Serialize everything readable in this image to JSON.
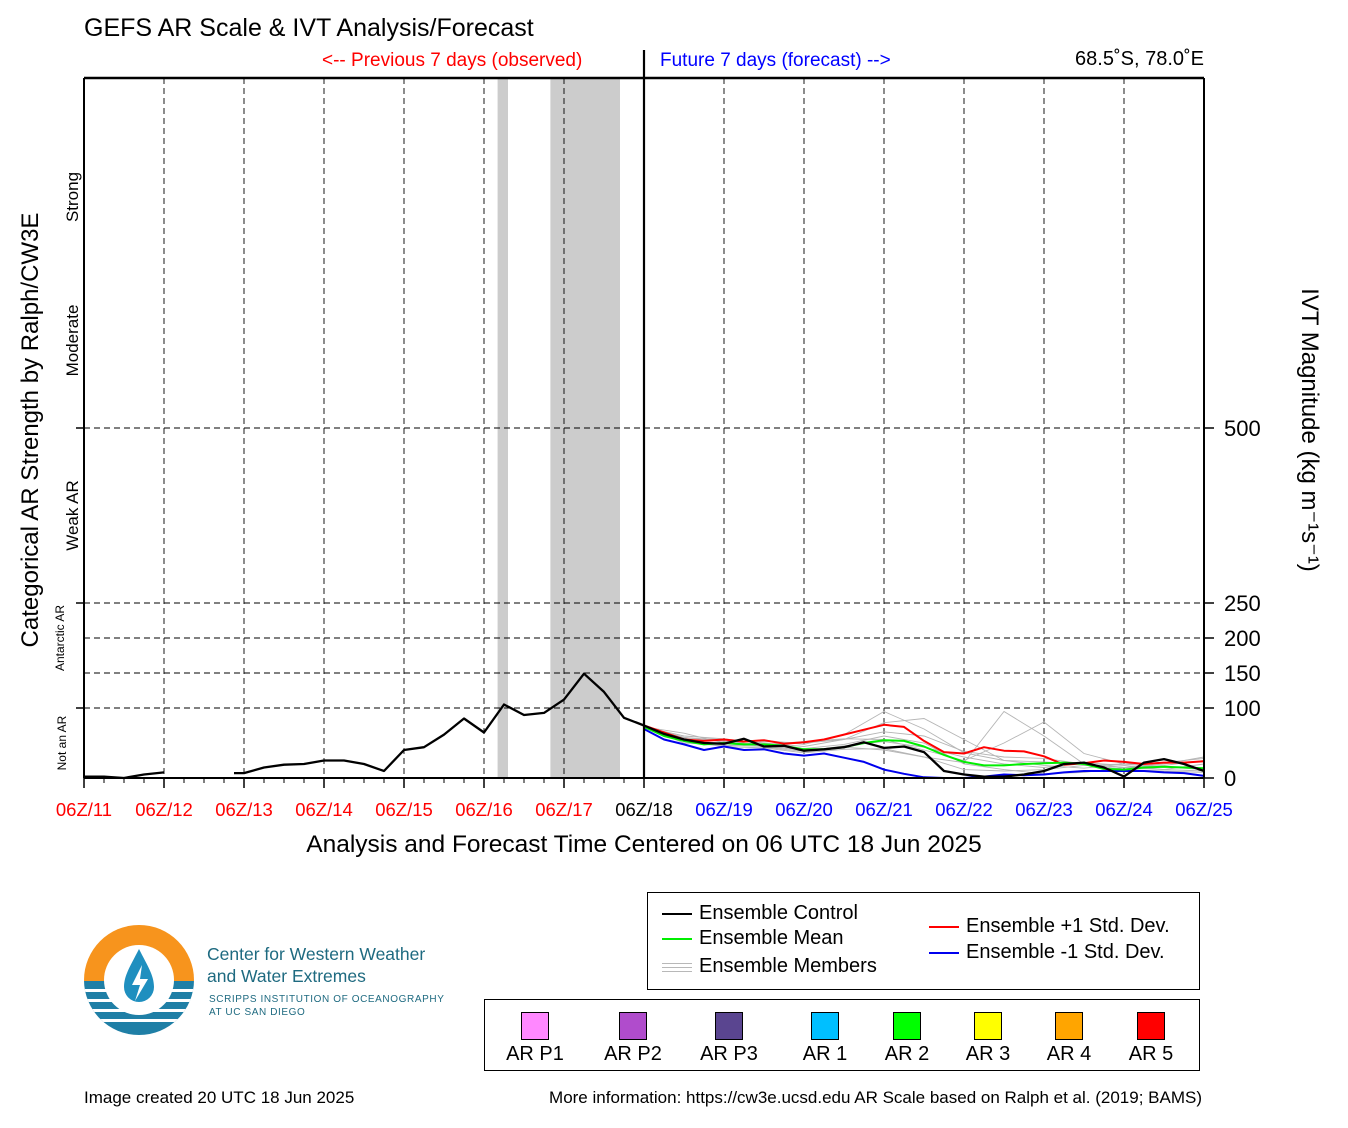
{
  "title": "GEFS AR Scale & IVT Analysis/Forecast",
  "header": {
    "previous_label": "<-- Previous 7 days (observed)",
    "future_label": "Future 7 days (forecast) -->",
    "location": "68.5˚S, 78.0˚E"
  },
  "chart_data": {
    "type": "line",
    "title": "GEFS AR Scale & IVT Analysis/Forecast",
    "xlabel": "Analysis and Forecast Time Centered on 06 UTC 18 Jun 2025",
    "ylabel_left": "Categorical AR Strength by Ralph/CW3E",
    "ylabel_right": "IVT Magnitude (kg m⁻¹s⁻¹)",
    "y_right_ticks": [
      0,
      100,
      150,
      200,
      250,
      500
    ],
    "y_right_tick_labels": [
      "0",
      "100",
      "150",
      "200",
      "250",
      "500"
    ],
    "ylim": [
      0,
      1000
    ],
    "x_tick_labels": [
      "06Z/11",
      "06Z/12",
      "06Z/13",
      "06Z/14",
      "06Z/15",
      "06Z/16",
      "06Z/17",
      "06Z/18",
      "06Z/19",
      "06Z/20",
      "06Z/21",
      "06Z/22",
      "06Z/23",
      "06Z/24",
      "06Z/25"
    ],
    "x_tick_colors": [
      "#ff0000",
      "#ff0000",
      "#ff0000",
      "#ff0000",
      "#ff0000",
      "#ff0000",
      "#ff0000",
      "#000000",
      "#0000ff",
      "#0000ff",
      "#0000ff",
      "#0000ff",
      "#0000ff",
      "#0000ff",
      "#0000ff"
    ],
    "xlim_days": [
      -7,
      7
    ],
    "category_labels": [
      {
        "label": "Strong",
        "center": 830
      },
      {
        "label": "Moderate",
        "center": 625
      },
      {
        "label": "Weak AR",
        "center": 375
      },
      {
        "label": "Antarctic AR",
        "center": 200
      },
      {
        "label": "Not an AR",
        "center": 50
      }
    ],
    "shaded_ar_periods_days": [
      [
        -1.83,
        -1.7
      ],
      [
        -1.17,
        -0.3
      ]
    ],
    "grid": true,
    "series": [
      {
        "name": "Ensemble Control",
        "color": "#000000",
        "segments": [
          {
            "x": [
              -7,
              -6.75,
              -6.5,
              -6.25,
              -6
            ],
            "y": [
              2,
              2,
              0,
              5,
              8
            ]
          },
          {
            "x": [
              -5.125,
              -5,
              -4.75,
              -4.5,
              -4.25,
              -4,
              -3.75,
              -3.5,
              -3.25,
              -3,
              -2.75,
              -2.5,
              -2.25,
              -2,
              -1.75,
              -1.5,
              -1.25,
              -1,
              -0.75,
              -0.5,
              -0.25,
              0
            ],
            "y": [
              7,
              7,
              15,
              19,
              20,
              25,
              25,
              20,
              10,
              40,
              44,
              62,
              85,
              65,
              105,
              90,
              93,
              112,
              149,
              123,
              86,
              75
            ]
          },
          {
            "x": [
              0,
              0.25,
              0.5,
              0.75,
              1,
              1.25,
              1.5,
              1.75,
              2,
              2.25,
              2.5,
              2.75,
              3,
              3.25,
              3.5,
              3.75,
              4,
              4.25,
              4.5,
              4.75,
              5,
              5.25,
              5.5,
              5.75,
              6,
              6.25,
              6.5,
              6.75,
              7
            ],
            "y": [
              75,
              63,
              55,
              50,
              49,
              56,
              45,
              46,
              39,
              41,
              44,
              51,
              43,
              45,
              37,
              10,
              5,
              2,
              2,
              5,
              10,
              20,
              22,
              15,
              2,
              22,
              27,
              20,
              10
            ]
          }
        ]
      },
      {
        "name": "Ensemble Mean",
        "color": "#00ee00",
        "x": [
          0,
          0.25,
          0.5,
          0.75,
          1,
          1.25,
          1.5,
          1.75,
          2,
          2.25,
          2.5,
          2.75,
          3,
          3.25,
          3.5,
          3.75,
          4,
          4.25,
          4.5,
          4.75,
          5,
          5.25,
          5.5,
          5.75,
          6,
          6.25,
          6.5,
          6.75,
          7
        ],
        "y": [
          73,
          60,
          53,
          48,
          50,
          48,
          48,
          46,
          41,
          41,
          44,
          50,
          54,
          53,
          45,
          33,
          23,
          18,
          18,
          20,
          21,
          22,
          20,
          13,
          12,
          15,
          16,
          15,
          14
        ]
      },
      {
        "name": "Ensemble +1 Std. Dev.",
        "color": "#ff0000",
        "x": [
          0,
          0.25,
          0.5,
          0.75,
          1,
          1.25,
          1.5,
          1.75,
          2,
          2.25,
          2.5,
          2.75,
          3,
          3.25,
          3.5,
          3.75,
          4,
          4.25,
          4.5,
          4.75,
          5,
          5.25,
          5.5,
          5.75,
          6,
          6.25,
          6.5,
          6.75,
          7
        ],
        "y": [
          75,
          65,
          55,
          53,
          55,
          52,
          54,
          49,
          51,
          55,
          62,
          69,
          76,
          73,
          53,
          37,
          35,
          44,
          39,
          38,
          31,
          19,
          21,
          25,
          23,
          20,
          22,
          22,
          24
        ]
      },
      {
        "name": "Ensemble -1 Std. Dev.",
        "color": "#0000ee",
        "x": [
          0,
          0.25,
          0.5,
          0.75,
          1,
          1.25,
          1.5,
          1.75,
          2,
          2.25,
          2.5,
          2.75,
          3,
          3.25,
          3.5,
          3.75,
          4,
          4.25,
          4.5,
          4.75,
          5,
          5.25,
          5.5,
          5.75,
          6,
          6.25,
          6.5,
          6.75,
          7
        ],
        "y": [
          70,
          55,
          48,
          40,
          45,
          40,
          41,
          35,
          32,
          35,
          29,
          23,
          12,
          6,
          1,
          0,
          0,
          2,
          5,
          4,
          5,
          8,
          10,
          10,
          10,
          10,
          8,
          7,
          3
        ]
      }
    ],
    "members": [
      {
        "name": "",
        "x": [
          0,
          0.5,
          1,
          1.5,
          2,
          2.5,
          3,
          3.5,
          4,
          4.5,
          5,
          5.5,
          6,
          6.5,
          7
        ],
        "y": [
          73,
          58,
          52,
          54,
          48,
          62,
          95,
          70,
          36,
          25,
          23,
          20,
          15,
          18,
          25
        ]
      },
      {
        "name": "",
        "x": [
          0,
          0.5,
          1,
          1.5,
          2,
          2.5,
          3,
          3.5,
          4,
          4.5,
          5,
          5.5,
          6,
          6.5,
          7
        ],
        "y": [
          73,
          52,
          45,
          43,
          36,
          41,
          42,
          30,
          22,
          95,
          60,
          20,
          15,
          12,
          10
        ]
      },
      {
        "name": "",
        "x": [
          0,
          0.5,
          1,
          1.5,
          2,
          2.5,
          3,
          3.5,
          4,
          4.5,
          5,
          5.5,
          6,
          6.5,
          7
        ],
        "y": [
          73,
          60,
          56,
          50,
          45,
          55,
          79,
          85,
          55,
          25,
          18,
          14,
          20,
          22,
          28
        ]
      },
      {
        "name": "",
        "x": [
          0,
          0.5,
          1,
          1.5,
          2,
          2.5,
          3,
          3.5,
          4,
          4.5,
          5,
          5.5,
          6,
          6.5,
          7
        ],
        "y": [
          73,
          50,
          47,
          45,
          40,
          44,
          40,
          30,
          12,
          10,
          12,
          18,
          20,
          16,
          12
        ]
      },
      {
        "name": "",
        "x": [
          0,
          0.5,
          1,
          1.5,
          2,
          2.5,
          3,
          3.5,
          4,
          4.5,
          5,
          5.5,
          6,
          6.5,
          7
        ],
        "y": [
          73,
          64,
          50,
          48,
          52,
          56,
          55,
          40,
          25,
          50,
          80,
          35,
          20,
          16,
          14
        ]
      },
      {
        "name": "",
        "x": [
          0,
          0.5,
          1,
          1.5,
          2,
          2.5,
          3,
          3.5,
          4,
          4.5,
          5,
          5.5,
          6,
          6.5,
          7
        ],
        "y": [
          73,
          57,
          55,
          44,
          38,
          46,
          52,
          44,
          30,
          20,
          15,
          22,
          18,
          12,
          20
        ]
      },
      {
        "name": "",
        "x": [
          0,
          0.5,
          1,
          1.5,
          2,
          2.5,
          3,
          3.5,
          4,
          4.5,
          5,
          5.5,
          6,
          6.5,
          7
        ],
        "y": [
          73,
          55,
          45,
          52,
          50,
          55,
          66,
          60,
          38,
          30,
          28,
          20,
          12,
          10,
          8
        ]
      },
      {
        "name": "",
        "x": [
          0,
          0.5,
          1,
          1.5,
          2,
          2.5,
          3,
          3.5,
          4,
          4.5,
          5,
          5.5,
          6,
          6.5,
          7
        ],
        "y": [
          73,
          58,
          53,
          46,
          42,
          48,
          60,
          50,
          20,
          12,
          6,
          8,
          15,
          20,
          30
        ]
      }
    ]
  },
  "legend": {
    "control": "Ensemble Control",
    "mean": "Ensemble Mean",
    "members": "Ensemble Members",
    "plus_std": "Ensemble +1 Std. Dev.",
    "minus_std": "Ensemble -1 Std. Dev."
  },
  "ar_scale": [
    {
      "label": "AR P1",
      "color": "#ff88ff"
    },
    {
      "label": "AR P2",
      "color": "#b04ccc"
    },
    {
      "label": "AR P3",
      "color": "#5a4590"
    },
    {
      "label": "AR 1",
      "color": "#00bfff"
    },
    {
      "label": "AR 2",
      "color": "#00ff00"
    },
    {
      "label": "AR 3",
      "color": "#ffff00"
    },
    {
      "label": "AR 4",
      "color": "#ffa500"
    },
    {
      "label": "AR 5",
      "color": "#ff0000"
    }
  ],
  "org": {
    "name_line1": "Center for Western Weather",
    "name_line2": "and Water Extremes",
    "sub_line1": "SCRIPPS INSTITUTION OF OCEANOGRAPHY",
    "sub_line2": "AT UC SAN DIEGO"
  },
  "footer": {
    "created": "Image created 20 UTC 18 Jun 2025",
    "more_info": "More information: https://cw3e.ucsd.edu AR Scale based on Ralph et al. (2019; BAMS)"
  }
}
